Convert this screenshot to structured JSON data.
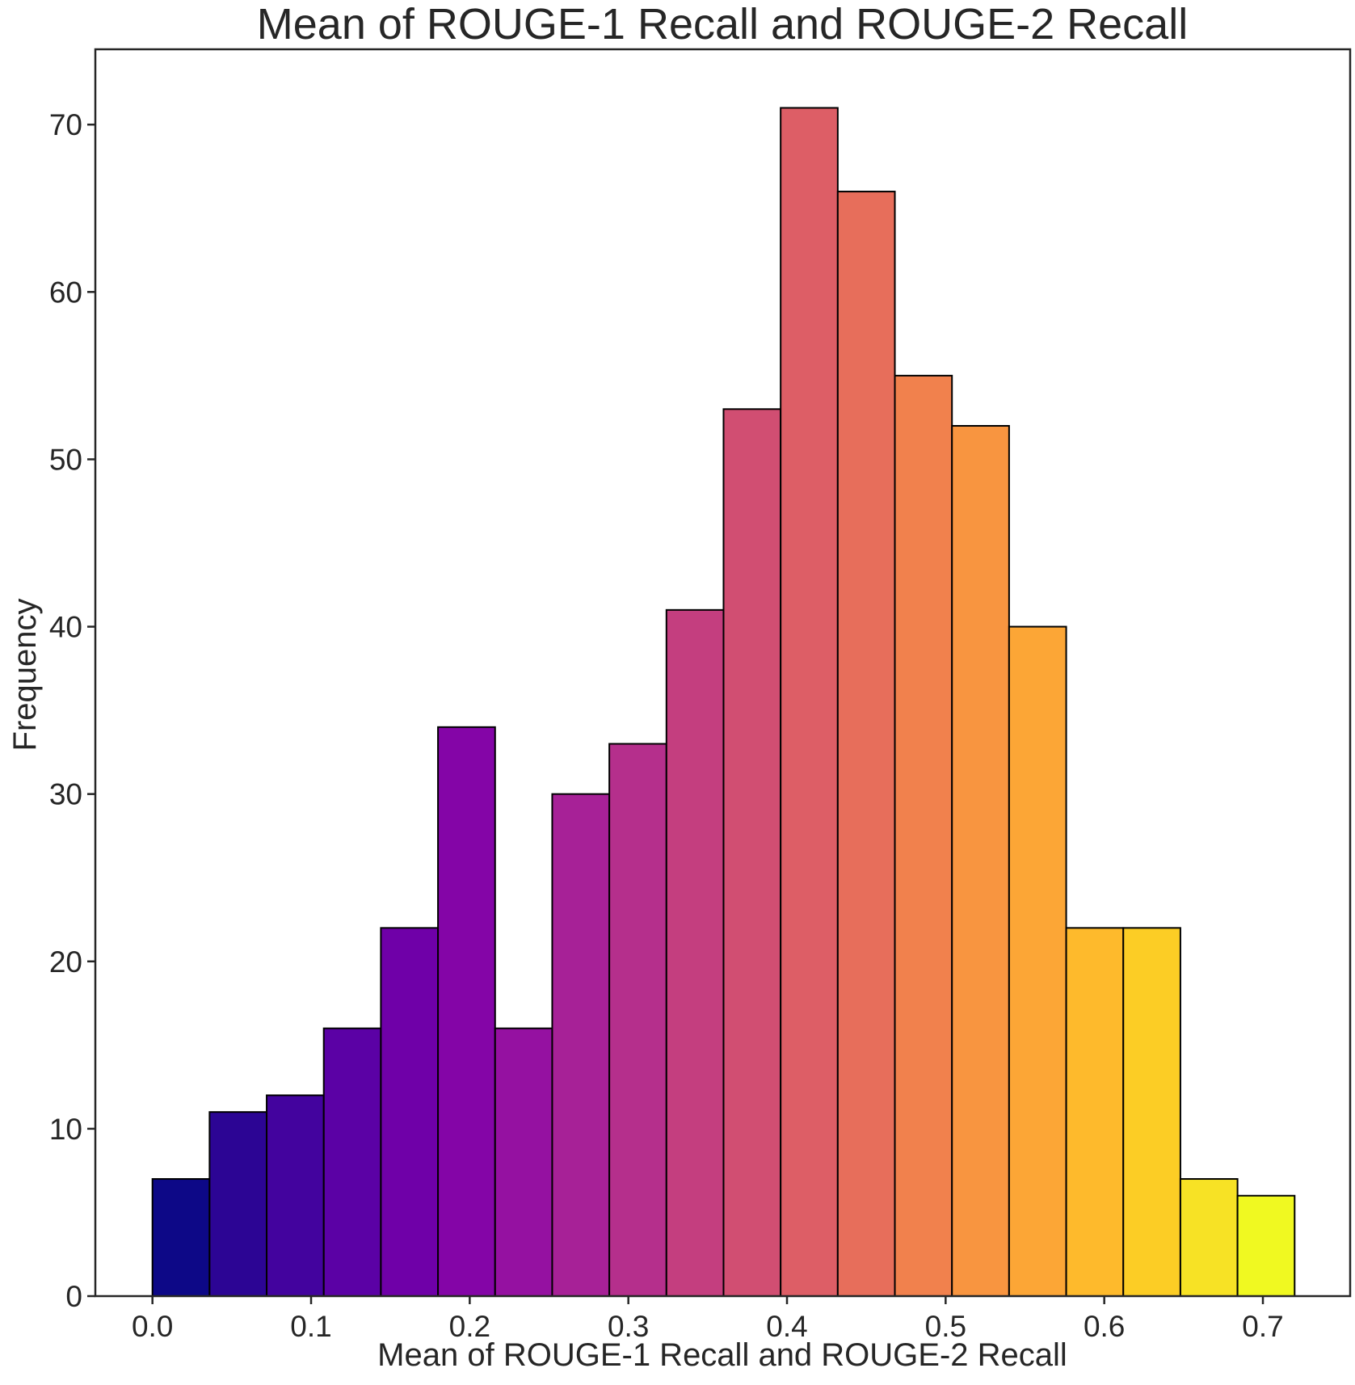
{
  "chart_data": {
    "type": "bar",
    "title": "Mean of ROUGE-1 Recall and ROUGE-2 Recall",
    "xlabel": "Mean of ROUGE-1 Recall and ROUGE-2 Recall",
    "ylabel": "Frequency",
    "xlim": [
      -0.036,
      0.755
    ],
    "ylim": [
      0,
      74.5
    ],
    "xticks": [
      0.0,
      0.1,
      0.2,
      0.3,
      0.4,
      0.5,
      0.6,
      0.7
    ],
    "xtick_labels": [
      "0.0",
      "0.1",
      "0.2",
      "0.3",
      "0.4",
      "0.5",
      "0.6",
      "0.7"
    ],
    "yticks": [
      0,
      10,
      20,
      30,
      40,
      50,
      60,
      70
    ],
    "ytick_labels": [
      "0",
      "10",
      "20",
      "30",
      "40",
      "50",
      "60",
      "70"
    ],
    "grid": false,
    "legend": "none",
    "bin_edges": [
      0.0,
      0.036,
      0.072,
      0.108,
      0.144,
      0.18,
      0.216,
      0.252,
      0.288,
      0.324,
      0.36,
      0.396,
      0.432,
      0.468,
      0.504,
      0.54,
      0.576,
      0.612,
      0.648,
      0.684,
      0.72
    ],
    "values": [
      7,
      11,
      12,
      16,
      22,
      34,
      16,
      30,
      33,
      41,
      53,
      71,
      66,
      55,
      52,
      40,
      22,
      22,
      7,
      6
    ],
    "colors": [
      "#0d0887",
      "#2c0594",
      "#43039e",
      "#5b01a5",
      "#6f00a8",
      "#8405a7",
      "#9511a1",
      "#a72197",
      "#b52f8c",
      "#c43e7f",
      "#d14e72",
      "#dd5e66",
      "#e76e5b",
      "#f1814d",
      "#f89540",
      "#fca636",
      "#feba2c",
      "#fccd25",
      "#f7e225",
      "#f0f921"
    ]
  }
}
